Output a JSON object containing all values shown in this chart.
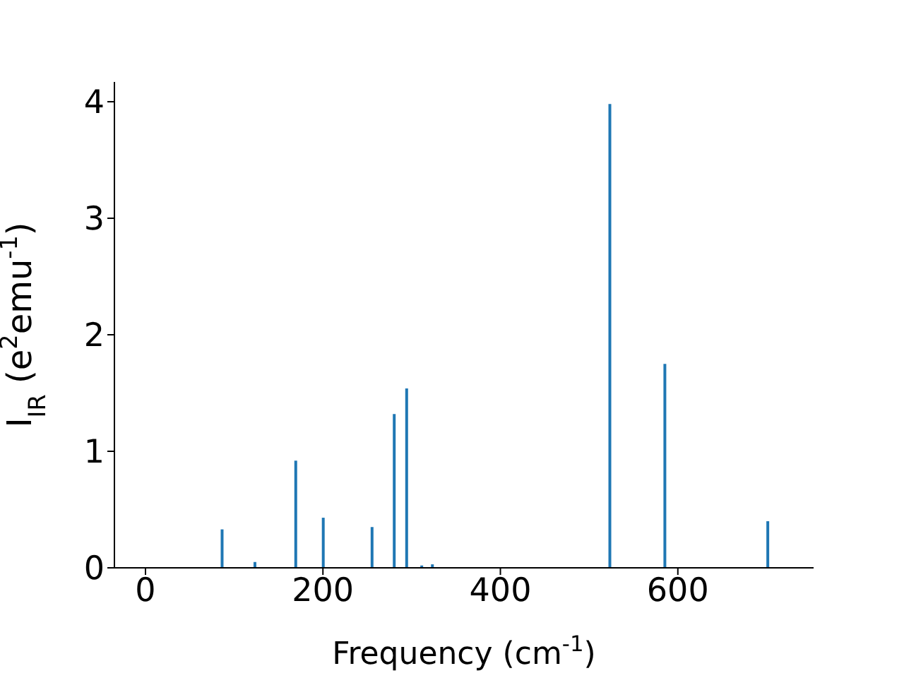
{
  "chart_data": {
    "type": "bar",
    "xlabel": "Frequency (cm$^{-1}$)",
    "ylabel": "I$_{IR}$ (e$^{2}$emu$^{-1}$)",
    "x": [
      86,
      123,
      169,
      200,
      255,
      280,
      294,
      311,
      323,
      523,
      585,
      701
    ],
    "values": [
      0.33,
      0.05,
      0.92,
      0.43,
      0.35,
      1.32,
      1.54,
      0.02,
      0.03,
      3.98,
      1.75,
      0.4
    ],
    "color": "#1f77b4",
    "xlim": [
      -35,
      753
    ],
    "xticks": [
      0,
      200,
      400,
      600
    ],
    "ylim": [
      0,
      4.17
    ],
    "yticks": [
      0,
      1,
      2,
      3,
      4
    ],
    "grid": false
  }
}
